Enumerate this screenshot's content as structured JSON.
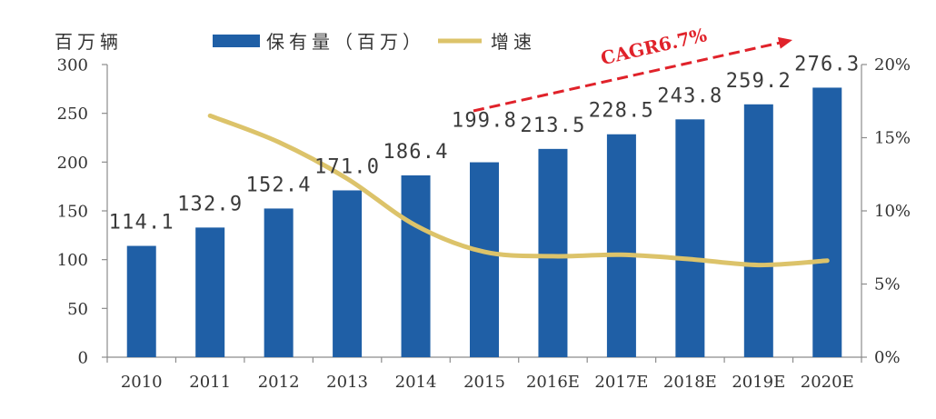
{
  "chart_data": {
    "type": "bar",
    "categories": [
      "2010",
      "2011",
      "2012",
      "2013",
      "2014",
      "2015",
      "2016E",
      "2017E",
      "2018E",
      "2019E",
      "2020E"
    ],
    "series": [
      {
        "name": "保有量（百万）",
        "type": "bar",
        "axis": "left",
        "color": "#1f5fa6",
        "values": [
          114.1,
          132.9,
          152.4,
          171.0,
          186.4,
          199.8,
          213.5,
          228.5,
          243.8,
          259.2,
          276.3
        ],
        "data_labels": [
          "114.1",
          "132.9",
          "152.4",
          "171.0",
          "186.4",
          "199.8",
          "213.5",
          "228.5",
          "243.8",
          "259.2",
          "276.3"
        ]
      },
      {
        "name": "增速",
        "type": "line",
        "axis": "right",
        "color": "#dcc36a",
        "smooth": true,
        "values": [
          null,
          16.5,
          14.7,
          12.2,
          9.0,
          7.2,
          6.9,
          7.0,
          6.7,
          6.3,
          6.6
        ]
      }
    ],
    "ylabel": "百万辆",
    "ylim": [
      0,
      300
    ],
    "yticks": [
      0,
      50,
      100,
      150,
      200,
      250,
      300
    ],
    "y2lim": [
      0,
      20
    ],
    "y2ticks": [
      "0%",
      "5%",
      "10%",
      "15%",
      "20%"
    ],
    "grid": false,
    "legend": {
      "placement": "top"
    },
    "annotations": [
      {
        "text": "CAGR6.7%",
        "color": "#e0222a"
      }
    ]
  }
}
